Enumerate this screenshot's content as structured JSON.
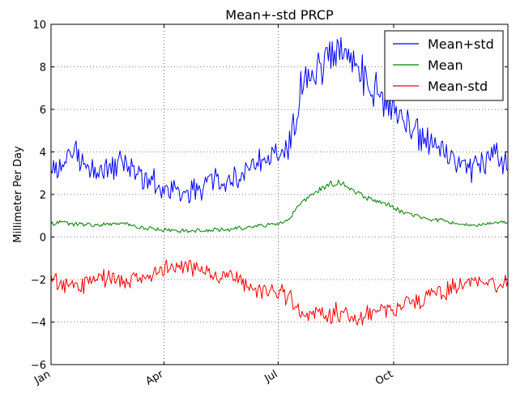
{
  "chart_data": {
    "type": "line",
    "title": "Mean+-std   PRCP",
    "xlabel": "",
    "ylabel": "Millimeter Per Day",
    "xlim": [
      1,
      365
    ],
    "ylim": [
      -6,
      10
    ],
    "yticks": [
      -6,
      -4,
      -2,
      0,
      2,
      4,
      6,
      8,
      10
    ],
    "xticks": [
      {
        "label": "Jan",
        "day": 1
      },
      {
        "label": "Apr",
        "day": 91
      },
      {
        "label": "Jul",
        "day": 182
      },
      {
        "label": "Oct",
        "day": 274
      }
    ],
    "grid": true,
    "legend_position": "top-right",
    "series": [
      {
        "name": "Mean+std",
        "color": "#0000ff",
        "x": [
          1,
          10,
          20,
          30,
          40,
          50,
          60,
          70,
          80,
          90,
          100,
          110,
          120,
          130,
          140,
          150,
          160,
          170,
          180,
          190,
          200,
          210,
          220,
          230,
          240,
          250,
          260,
          270,
          280,
          290,
          300,
          310,
          320,
          330,
          340,
          350,
          360,
          365
        ],
        "values": [
          3.1,
          3.6,
          3.8,
          3.5,
          3.0,
          3.3,
          3.4,
          3.0,
          2.6,
          2.3,
          2.0,
          2.1,
          2.2,
          2.6,
          2.5,
          2.8,
          3.4,
          3.6,
          3.8,
          4.3,
          6.8,
          7.6,
          8.4,
          8.8,
          8.2,
          7.6,
          7.0,
          6.3,
          5.6,
          5.0,
          4.6,
          4.2,
          3.8,
          3.4,
          3.2,
          3.6,
          3.8,
          3.3
        ]
      },
      {
        "name": "Mean",
        "color": "#008000",
        "x": [
          1,
          10,
          20,
          30,
          40,
          50,
          60,
          70,
          80,
          90,
          100,
          110,
          120,
          130,
          140,
          150,
          160,
          170,
          180,
          190,
          200,
          210,
          220,
          230,
          240,
          250,
          260,
          270,
          280,
          290,
          300,
          310,
          320,
          330,
          340,
          350,
          360,
          365
        ],
        "values": [
          0.6,
          0.7,
          0.6,
          0.6,
          0.55,
          0.6,
          0.65,
          0.5,
          0.4,
          0.35,
          0.3,
          0.3,
          0.3,
          0.35,
          0.35,
          0.4,
          0.45,
          0.55,
          0.6,
          0.8,
          1.6,
          2.0,
          2.4,
          2.6,
          2.2,
          1.9,
          1.7,
          1.5,
          1.2,
          1.0,
          0.9,
          0.8,
          0.7,
          0.55,
          0.55,
          0.65,
          0.75,
          0.6
        ]
      },
      {
        "name": "Mean-std",
        "color": "#ff0000",
        "x": [
          1,
          10,
          20,
          30,
          40,
          50,
          60,
          70,
          80,
          90,
          100,
          110,
          120,
          130,
          140,
          150,
          160,
          170,
          180,
          190,
          200,
          210,
          220,
          230,
          240,
          250,
          260,
          270,
          280,
          290,
          300,
          310,
          320,
          330,
          340,
          350,
          360,
          365
        ],
        "values": [
          -1.9,
          -2.2,
          -2.4,
          -2.2,
          -1.9,
          -2.0,
          -2.1,
          -1.9,
          -1.8,
          -1.6,
          -1.3,
          -1.4,
          -1.5,
          -1.8,
          -1.8,
          -1.9,
          -2.5,
          -2.5,
          -2.6,
          -2.8,
          -3.5,
          -3.6,
          -3.6,
          -3.6,
          -3.6,
          -3.7,
          -3.6,
          -3.4,
          -3.2,
          -3.0,
          -2.8,
          -2.6,
          -2.4,
          -2.2,
          -2.1,
          -2.2,
          -2.2,
          -2.1
        ]
      }
    ]
  }
}
